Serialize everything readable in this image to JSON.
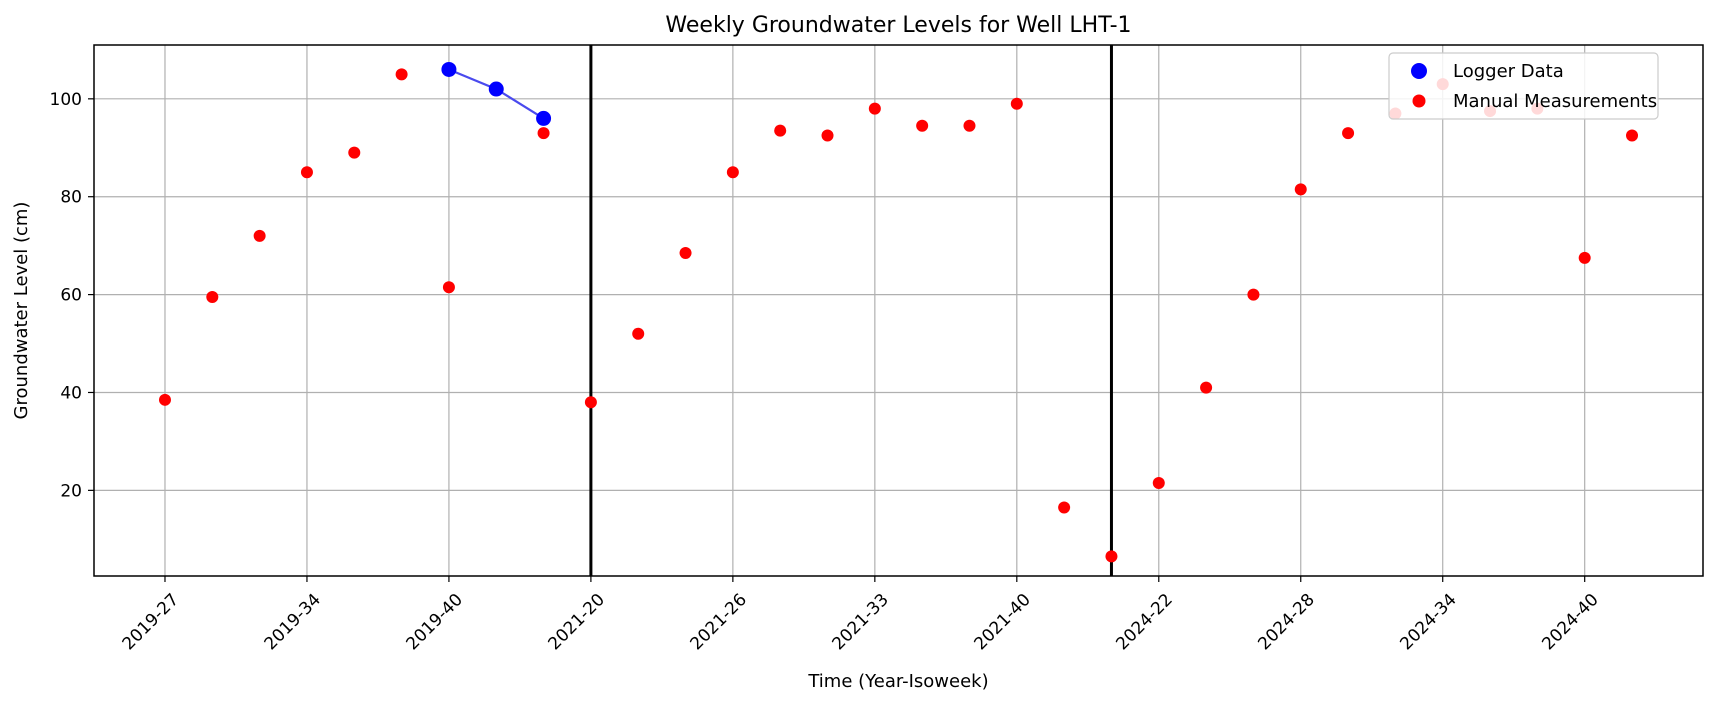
{
  "chart_data": {
    "type": "scatter",
    "title": "Weekly Groundwater Levels for Well LHT-1",
    "xlabel": "Time (Year-Isoweek)",
    "ylabel": "Groundwater Level (cm)",
    "y_inverted": true,
    "ylim": [
      111,
      2.5
    ],
    "x_index_range": [
      -1.5,
      32.5
    ],
    "y_ticks": [
      20,
      40,
      60,
      80,
      100
    ],
    "grid": true,
    "legend_position": "top-right",
    "x_ticks": [
      {
        "index": 0,
        "label": "2019-27"
      },
      {
        "index": 3,
        "label": "2019-34"
      },
      {
        "index": 6,
        "label": "2019-40"
      },
      {
        "index": 9,
        "label": "2021-20"
      },
      {
        "index": 12,
        "label": "2021-26"
      },
      {
        "index": 15,
        "label": "2021-33"
      },
      {
        "index": 18,
        "label": "2021-40"
      },
      {
        "index": 21,
        "label": "2024-22"
      },
      {
        "index": 24,
        "label": "2024-28"
      },
      {
        "index": 27,
        "label": "2024-34"
      },
      {
        "index": 30,
        "label": "2024-40"
      }
    ],
    "period_separators": [
      9,
      20
    ],
    "series": [
      {
        "name": "Logger Data",
        "color": "#0000ff",
        "line_color": "#4a4aee",
        "connected": true,
        "points": [
          {
            "x": 6,
            "y": 106
          },
          {
            "x": 7,
            "y": 102
          },
          {
            "x": 8,
            "y": 96
          }
        ]
      },
      {
        "name": "Manual Measurements",
        "color": "#ff0000",
        "connected": false,
        "points": [
          {
            "x": 0,
            "y": 38.5
          },
          {
            "x": 1,
            "y": 59.5
          },
          {
            "x": 2,
            "y": 72
          },
          {
            "x": 3,
            "y": 85
          },
          {
            "x": 4,
            "y": 89
          },
          {
            "x": 5,
            "y": 105
          },
          {
            "x": 6,
            "y": 61.5
          },
          {
            "x": 8,
            "y": 93
          },
          {
            "x": 9,
            "y": 38
          },
          {
            "x": 10,
            "y": 52
          },
          {
            "x": 11,
            "y": 68.5
          },
          {
            "x": 12,
            "y": 85
          },
          {
            "x": 13,
            "y": 93.5
          },
          {
            "x": 14,
            "y": 92.5
          },
          {
            "x": 15,
            "y": 98
          },
          {
            "x": 16,
            "y": 94.5
          },
          {
            "x": 17,
            "y": 94.5
          },
          {
            "x": 18,
            "y": 99
          },
          {
            "x": 19,
            "y": 16.5
          },
          {
            "x": 20,
            "y": 6.5
          },
          {
            "x": 21,
            "y": 21.5
          },
          {
            "x": 22,
            "y": 41
          },
          {
            "x": 23,
            "y": 60
          },
          {
            "x": 24,
            "y": 81.5
          },
          {
            "x": 25,
            "y": 93
          },
          {
            "x": 26,
            "y": 97
          },
          {
            "x": 27,
            "y": 103
          },
          {
            "x": 28,
            "y": 97.5
          },
          {
            "x": 29,
            "y": 98
          },
          {
            "x": 30,
            "y": 67.5
          },
          {
            "x": 31,
            "y": 92.5
          }
        ]
      }
    ]
  }
}
